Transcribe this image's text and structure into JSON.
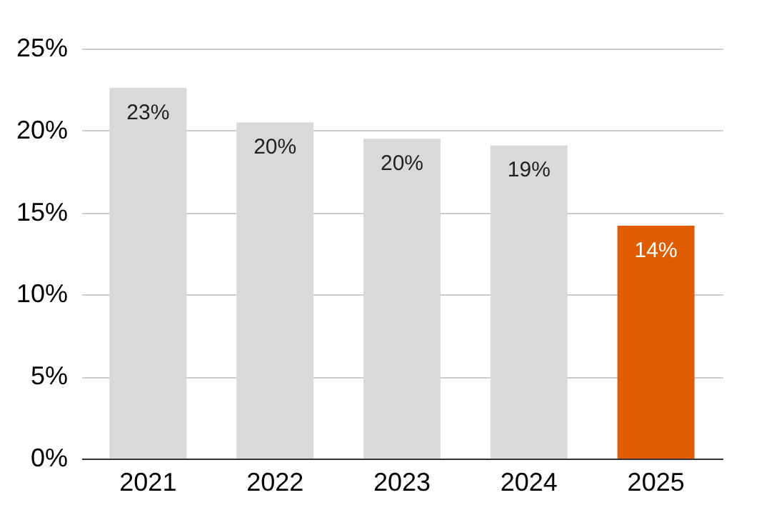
{
  "chart_data": {
    "type": "bar",
    "categories": [
      "2021",
      "2022",
      "2023",
      "2024",
      "2025"
    ],
    "values": [
      22.6,
      20.5,
      19.5,
      19.1,
      14.2
    ],
    "colors": [
      "#d9d9d9",
      "#d9d9d9",
      "#d9d9d9",
      "#d9d9d9",
      "#e05c00"
    ],
    "value_labels": [
      "23%",
      "20%",
      "20%",
      "19%",
      "14%"
    ],
    "ylim": [
      0,
      25
    ],
    "yticks": [
      {
        "value": 0,
        "label": "0%"
      },
      {
        "value": 5,
        "label": "5%"
      },
      {
        "value": 10,
        "label": "10%"
      },
      {
        "value": 15,
        "label": "15%"
      },
      {
        "value": 20,
        "label": "20%"
      },
      {
        "value": 25,
        "label": "25%"
      }
    ],
    "grid": "y"
  }
}
